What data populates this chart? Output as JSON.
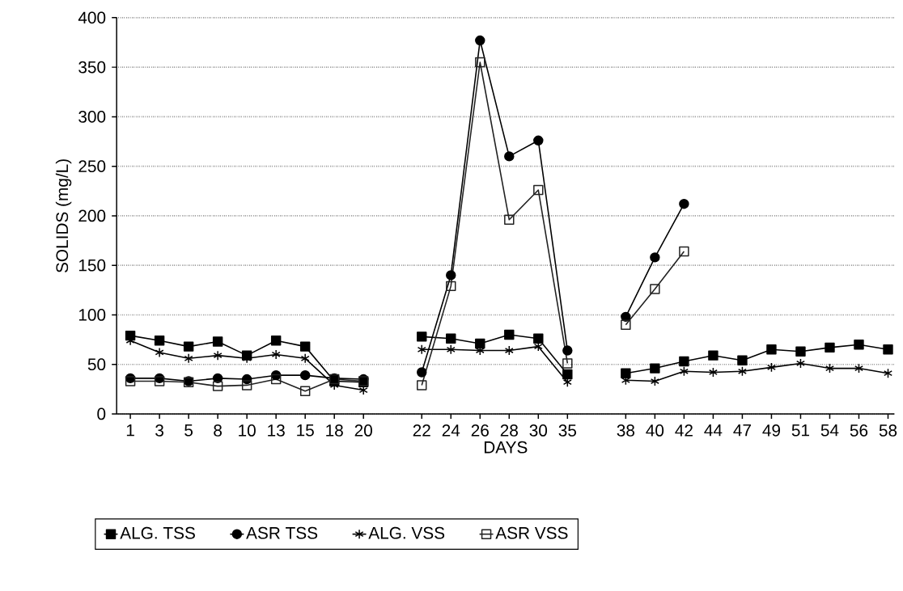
{
  "chart_data": {
    "type": "line",
    "xlabel": "DAYS",
    "ylabel": "SOLIDS (mg/L)",
    "categories": [
      "1",
      "3",
      "5",
      "8",
      "10",
      "13",
      "15",
      "18",
      "20",
      null,
      "22",
      "24",
      "26",
      "28",
      "30",
      "35",
      null,
      "38",
      "40",
      "42",
      "44",
      "47",
      "49",
      "51",
      "54",
      "56",
      "58"
    ],
    "series": [
      {
        "name": "ALG. TSS",
        "color": "#000000",
        "marker": "square",
        "values": [
          79,
          74,
          68,
          73,
          59,
          74,
          68,
          33,
          32,
          null,
          78,
          76,
          71,
          80,
          76,
          40,
          null,
          41,
          46,
          53,
          59,
          54,
          65,
          63,
          67,
          70,
          65
        ]
      },
      {
        "name": "ASR TSS",
        "color": "#000000",
        "marker": "circle",
        "values": [
          36,
          36,
          33,
          36,
          35,
          39,
          39,
          36,
          35,
          null,
          42,
          140,
          377,
          260,
          276,
          64,
          null,
          98,
          158,
          212,
          null,
          null,
          null,
          null,
          null,
          null,
          null
        ]
      },
      {
        "name": "ALG. VSS",
        "color": "#000000",
        "marker": "cross",
        "values": [
          74,
          62,
          56,
          59,
          56,
          60,
          56,
          29,
          24,
          null,
          65,
          65,
          64,
          64,
          68,
          32,
          null,
          34,
          33,
          43,
          42,
          43,
          47,
          51,
          46,
          46,
          41
        ]
      },
      {
        "name": "ASR VSS",
        "color": "#222222",
        "marker": "square",
        "values": [
          33,
          33,
          32,
          28,
          29,
          35,
          23,
          35,
          33,
          null,
          29,
          129,
          355,
          196,
          226,
          51,
          null,
          90,
          126,
          164,
          null,
          null,
          null,
          null,
          null,
          null,
          null
        ]
      }
    ],
    "ylim": [
      0,
      400
    ],
    "yticks": [
      0,
      50,
      100,
      150,
      200,
      250,
      300,
      350,
      400
    ],
    "grid": "y",
    "legend": "bottom",
    "line_style": "solid"
  }
}
